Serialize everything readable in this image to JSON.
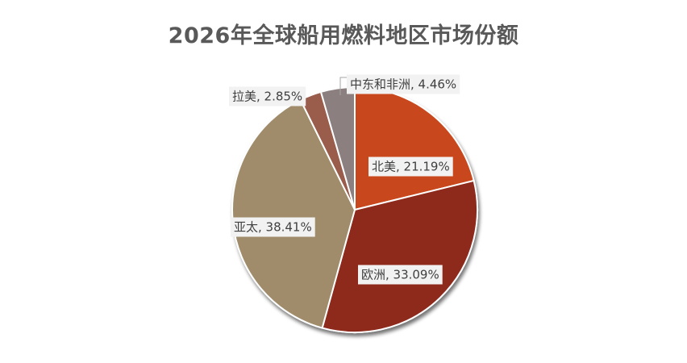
{
  "chart_data": {
    "type": "pie",
    "title": "2026年全球船用燃料地区市场份额",
    "categories": [
      "北美",
      "欧洲",
      "亚太",
      "拉美",
      "中东和非洲"
    ],
    "values": [
      21.19,
      33.09,
      38.41,
      2.85,
      4.46
    ],
    "unit": "%",
    "labels": [
      "北美, 21.19%",
      "欧洲, 33.09%",
      "亚太, 38.41%",
      "拉美, 2.85%",
      "中东和非洲, 4.46%"
    ],
    "colors": [
      "#C9471A",
      "#8E2A1E",
      "#A08C6A",
      "#9A5B4C",
      "#8C7F80"
    ],
    "legend": "none"
  }
}
